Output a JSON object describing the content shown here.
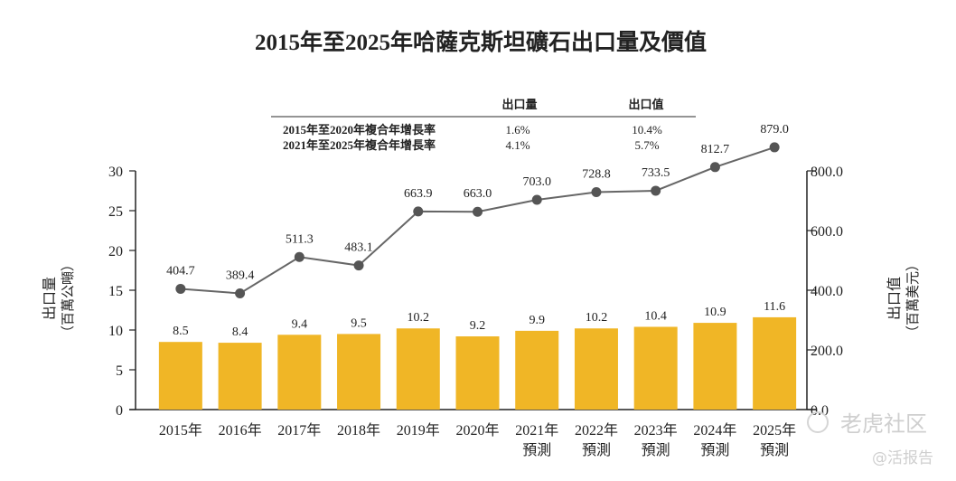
{
  "chart_data": {
    "type": "bar+line",
    "title": "2015年至2025年哈薩克斯坦礦石出口量及價值",
    "categories": [
      "2015年",
      "2016年",
      "2017年",
      "2018年",
      "2019年",
      "2020年",
      "2021年\n預測",
      "2022年\n預測",
      "2023年\n預測",
      "2024年\n預測",
      "2025年\n預測"
    ],
    "series": [
      {
        "name": "出口量",
        "type": "bar",
        "axis": "left",
        "color": "#f0b626",
        "values": [
          8.5,
          8.4,
          9.4,
          9.5,
          10.2,
          9.2,
          9.9,
          10.2,
          10.4,
          10.9,
          11.6
        ]
      },
      {
        "name": "出口值",
        "type": "line",
        "axis": "right",
        "color": "#666666",
        "values": [
          404.7,
          389.4,
          511.3,
          483.1,
          663.9,
          663.0,
          703.0,
          728.8,
          733.5,
          812.7,
          879.0
        ]
      }
    ],
    "ylabel_left": "出口量\n（百萬公噸）",
    "ylabel_right": "出口值\n（百萬美元）",
    "ylim_left": [
      0,
      30
    ],
    "yticks_left": [
      "0",
      "5",
      "10",
      "15",
      "20",
      "25",
      "30"
    ],
    "ylim_right": [
      0,
      800
    ],
    "yticks_right": [
      "0.0",
      "200.0",
      "400.0",
      "600.0",
      "800.0"
    ],
    "cagr_table": {
      "headers": [
        "出口量",
        "出口值"
      ],
      "rows": [
        {
          "label": "2015年至2020年複合年增長率",
          "volume": "1.6%",
          "value": "10.4%"
        },
        {
          "label": "2021年至2025年複合年增長率",
          "volume": "4.1%",
          "value": "5.7%"
        }
      ]
    }
  },
  "watermark": {
    "brand": "老虎社区",
    "handle": "@活报告"
  }
}
